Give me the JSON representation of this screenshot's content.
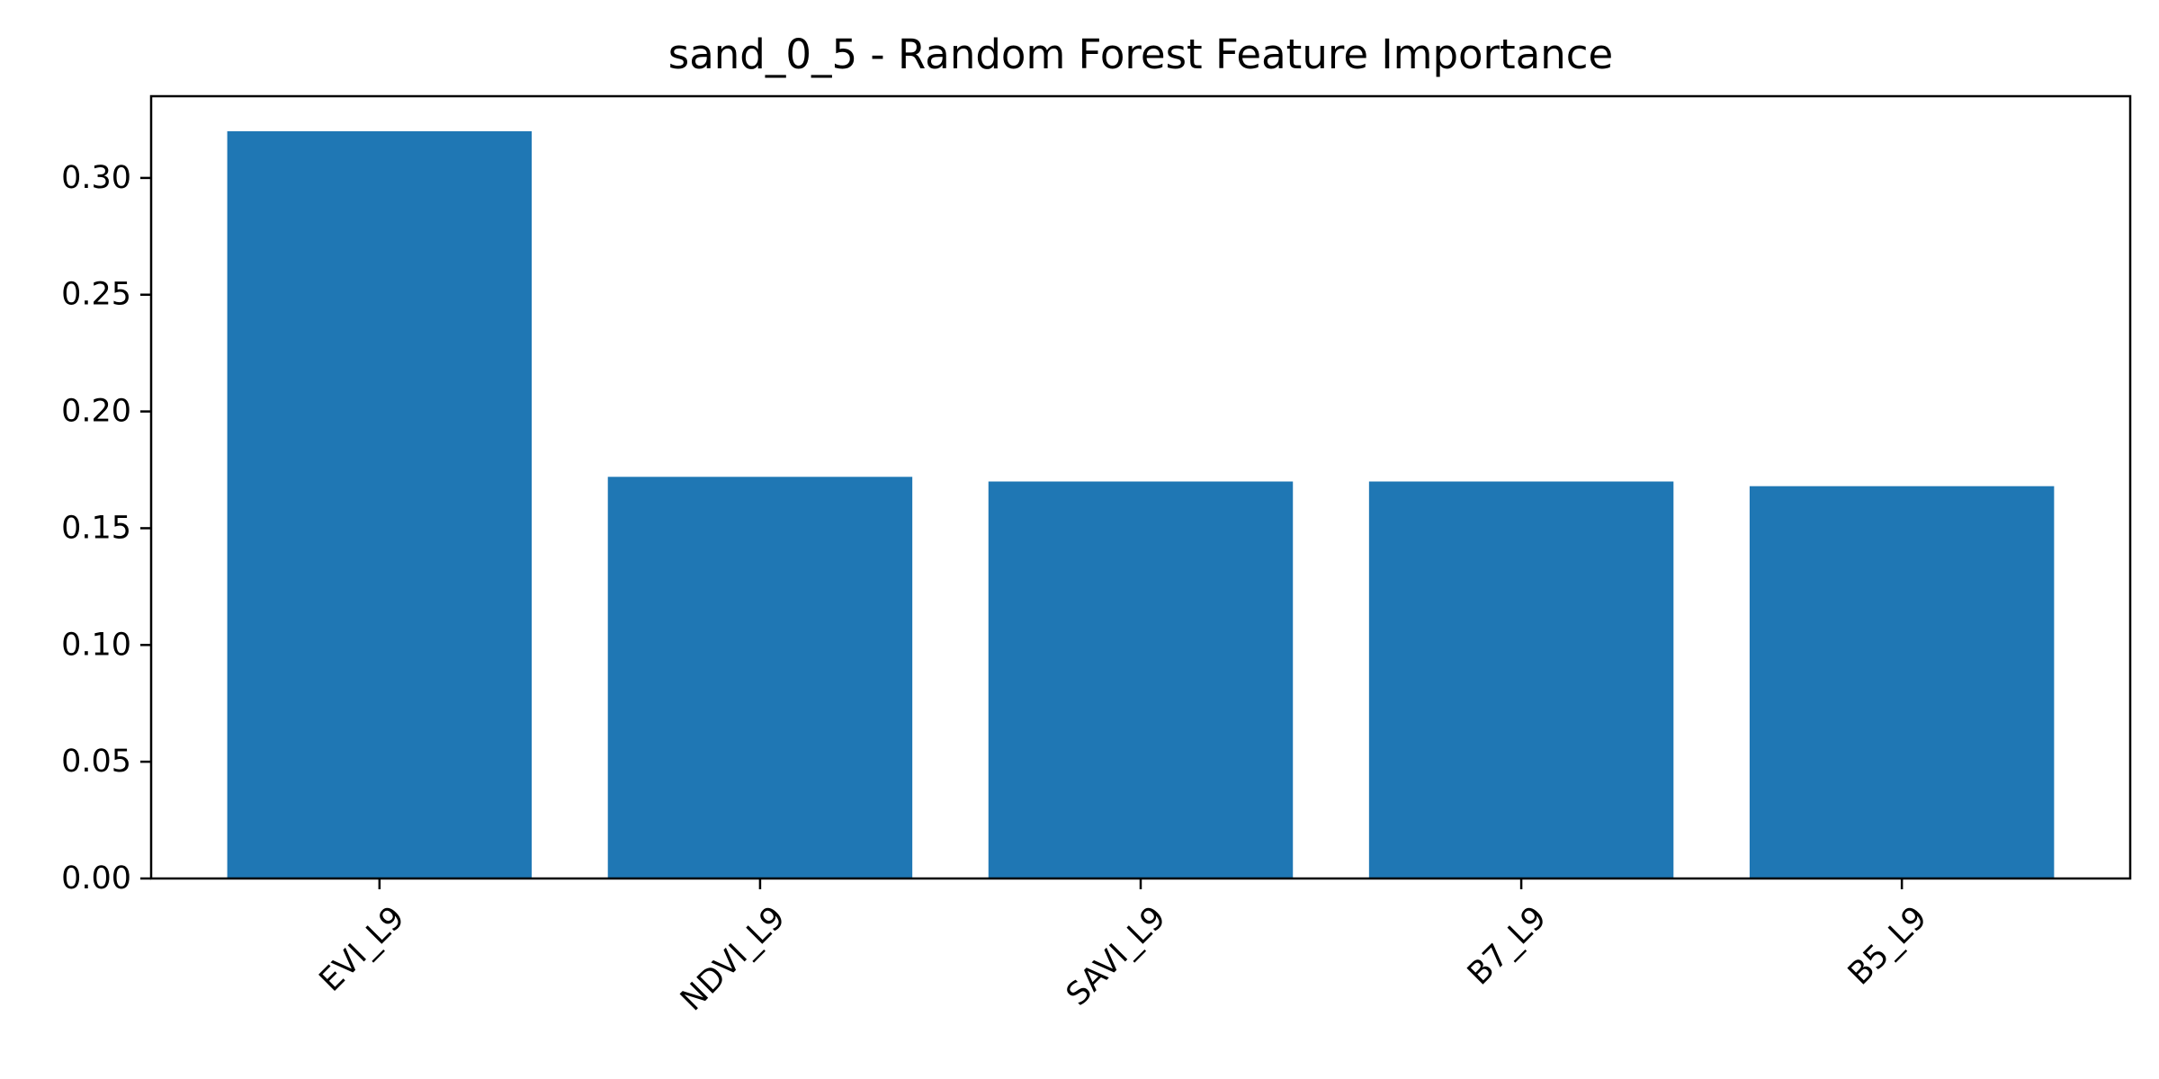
{
  "chart_data": {
    "type": "bar",
    "title": "sand_0_5 - Random Forest Feature Importance",
    "xlabel": "",
    "ylabel": "",
    "categories": [
      "EVI_L9",
      "NDVI_L9",
      "SAVI_L9",
      "B7_L9",
      "B5_L9"
    ],
    "values": [
      0.32,
      0.172,
      0.17,
      0.17,
      0.168
    ],
    "ylim": [
      0,
      0.335
    ],
    "yticks": [
      0.0,
      0.05,
      0.1,
      0.15,
      0.2,
      0.25,
      0.3
    ],
    "ytick_labels": [
      "0.00",
      "0.05",
      "0.10",
      "0.15",
      "0.20",
      "0.25",
      "0.30"
    ],
    "xtick_rotation": 45,
    "grid": false,
    "bar_color": "#1f77b4"
  }
}
